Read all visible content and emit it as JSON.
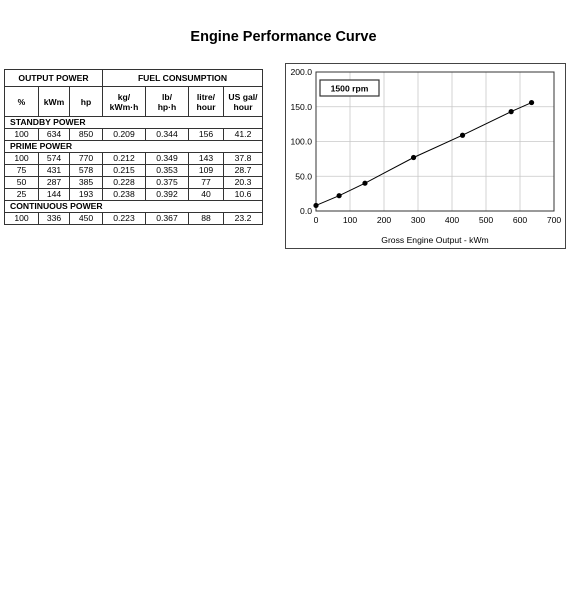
{
  "title": "Engine Performance Curve",
  "table": {
    "group_headers": [
      "OUTPUT POWER",
      "FUEL CONSUMPTION"
    ],
    "output_columns": [
      "%",
      "kWm",
      "hp"
    ],
    "fuel_columns": [
      [
        "kg/",
        "kWm·h"
      ],
      [
        "lb/",
        "hp·h"
      ],
      [
        "litre/",
        "hour"
      ],
      [
        "US gal/",
        "hour"
      ]
    ],
    "sections": [
      {
        "name": "STANDBY POWER",
        "rows": [
          [
            "100",
            "634",
            "850",
            "0.209",
            "0.344",
            "156",
            "41.2"
          ]
        ]
      },
      {
        "name": "PRIME POWER",
        "rows": [
          [
            "100",
            "574",
            "770",
            "0.212",
            "0.349",
            "143",
            "37.8"
          ],
          [
            "75",
            "431",
            "578",
            "0.215",
            "0.353",
            "109",
            "28.7"
          ],
          [
            "50",
            "287",
            "385",
            "0.228",
            "0.375",
            "77",
            "20.3"
          ],
          [
            "25",
            "144",
            "193",
            "0.238",
            "0.392",
            "40",
            "10.6"
          ]
        ]
      },
      {
        "name": "CONTINUOUS POWER",
        "rows": [
          [
            "100",
            "336",
            "450",
            "0.223",
            "0.367",
            "88",
            "23.2"
          ]
        ]
      }
    ]
  },
  "chart_data": {
    "type": "line",
    "annotation": "1500 rpm",
    "xlabel": "Gross Engine Output - kWm",
    "ylabel": "",
    "xlim": [
      0,
      700
    ],
    "ylim": [
      0,
      200
    ],
    "xticks": [
      "0",
      "100",
      "200",
      "300",
      "400",
      "500",
      "600",
      "700"
    ],
    "yticks": [
      "0.0",
      "50.0",
      "100.0",
      "150.0",
      "200.0"
    ],
    "grid": true,
    "x": [
      0,
      68,
      144,
      287,
      431,
      574,
      634
    ],
    "y": [
      8,
      22,
      40,
      77,
      109,
      143,
      156
    ]
  }
}
